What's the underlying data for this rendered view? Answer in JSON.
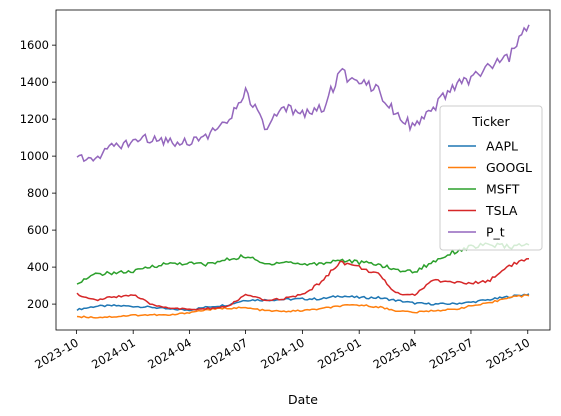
{
  "chart_data": {
    "type": "line",
    "xlabel": "Date",
    "ylabel": "",
    "x_range": [
      "2023-10-02",
      "2025-10-03"
    ],
    "ylim": [
      60,
      1790
    ],
    "grid": false,
    "x_ticks": [
      "2023-10",
      "2024-01",
      "2024-04",
      "2024-07",
      "2024-10",
      "2025-01",
      "2025-04",
      "2025-07",
      "2025-10"
    ],
    "y_ticks": [
      200,
      400,
      600,
      800,
      1000,
      1200,
      1400,
      1600
    ],
    "legend": {
      "title": "Ticker",
      "placement": "center-right"
    },
    "dates": [
      "2023-10-02",
      "2023-11-01",
      "2023-12-01",
      "2024-01-01",
      "2024-02-01",
      "2024-03-01",
      "2024-04-01",
      "2024-05-01",
      "2024-06-01",
      "2024-07-01",
      "2024-08-01",
      "2024-09-01",
      "2024-10-01",
      "2024-11-01",
      "2024-12-01",
      "2025-01-01",
      "2025-02-01",
      "2025-03-01",
      "2025-04-01",
      "2025-05-01",
      "2025-06-01",
      "2025-07-01",
      "2025-08-01",
      "2025-09-01",
      "2025-10-03"
    ],
    "series": [
      {
        "name": "AAPL",
        "color": "#1f77b4",
        "values": [
          170,
          188,
          192,
          188,
          183,
          172,
          168,
          185,
          195,
          222,
          222,
          225,
          228,
          228,
          245,
          235,
          235,
          220,
          205,
          200,
          202,
          210,
          225,
          240,
          255
        ]
      },
      {
        "name": "GOOGL",
        "color": "#ff7f0e",
        "values": [
          133,
          128,
          132,
          140,
          142,
          140,
          155,
          170,
          178,
          180,
          165,
          160,
          165,
          175,
          190,
          195,
          185,
          165,
          155,
          165,
          170,
          190,
          205,
          240,
          245
        ]
      },
      {
        "name": "MSFT",
        "color": "#2ca02c",
        "values": [
          315,
          360,
          370,
          375,
          405,
          420,
          420,
          415,
          440,
          460,
          415,
          430,
          415,
          420,
          440,
          425,
          415,
          385,
          375,
          430,
          480,
          510,
          520,
          510,
          520
        ]
      },
      {
        "name": "TSLA",
        "color": "#d62728",
        "values": [
          255,
          220,
          240,
          250,
          195,
          180,
          170,
          175,
          185,
          250,
          220,
          230,
          250,
          320,
          430,
          400,
          360,
          260,
          250,
          330,
          320,
          310,
          330,
          410,
          445
        ]
      },
      {
        "name": "P_t",
        "color": "#9467bd",
        "values": [
          990,
          1000,
          1050,
          1080,
          1100,
          1080,
          1080,
          1120,
          1170,
          1350,
          1150,
          1250,
          1240,
          1250,
          1440,
          1420,
          1360,
          1240,
          1150,
          1250,
          1370,
          1420,
          1480,
          1530,
          1710
        ]
      }
    ]
  }
}
